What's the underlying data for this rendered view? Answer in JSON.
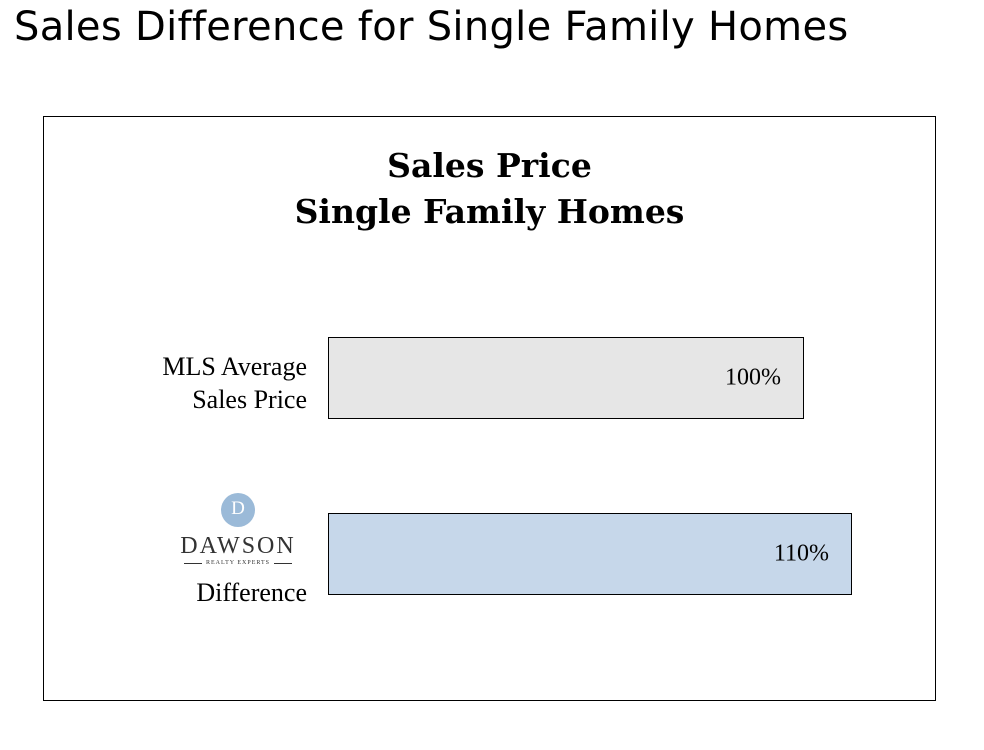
{
  "page": {
    "title": "Sales Difference for Single Family Homes"
  },
  "chart_data": {
    "type": "bar",
    "orientation": "horizontal",
    "title_lines": [
      "Sales Price",
      "Single Family Homes"
    ],
    "categories": [
      "MLS Average Sales Price",
      "DAWSON Difference"
    ],
    "values": [
      100,
      110
    ],
    "data_labels": [
      "100%",
      "110%"
    ],
    "unit": "%",
    "xlim": [
      0,
      110
    ],
    "grid": false,
    "legend": "none",
    "colors": [
      "#e6e6e6",
      "#c6d7ea"
    ],
    "category_label_lines": [
      [
        "MLS Average",
        "Sales Price"
      ],
      [
        "Difference"
      ]
    ]
  },
  "logo": {
    "icon": "dawson-monogram-icon",
    "wordmark": "DAWSON",
    "tagline": "REALTY EXPERTS",
    "color": "#9bbad8"
  }
}
